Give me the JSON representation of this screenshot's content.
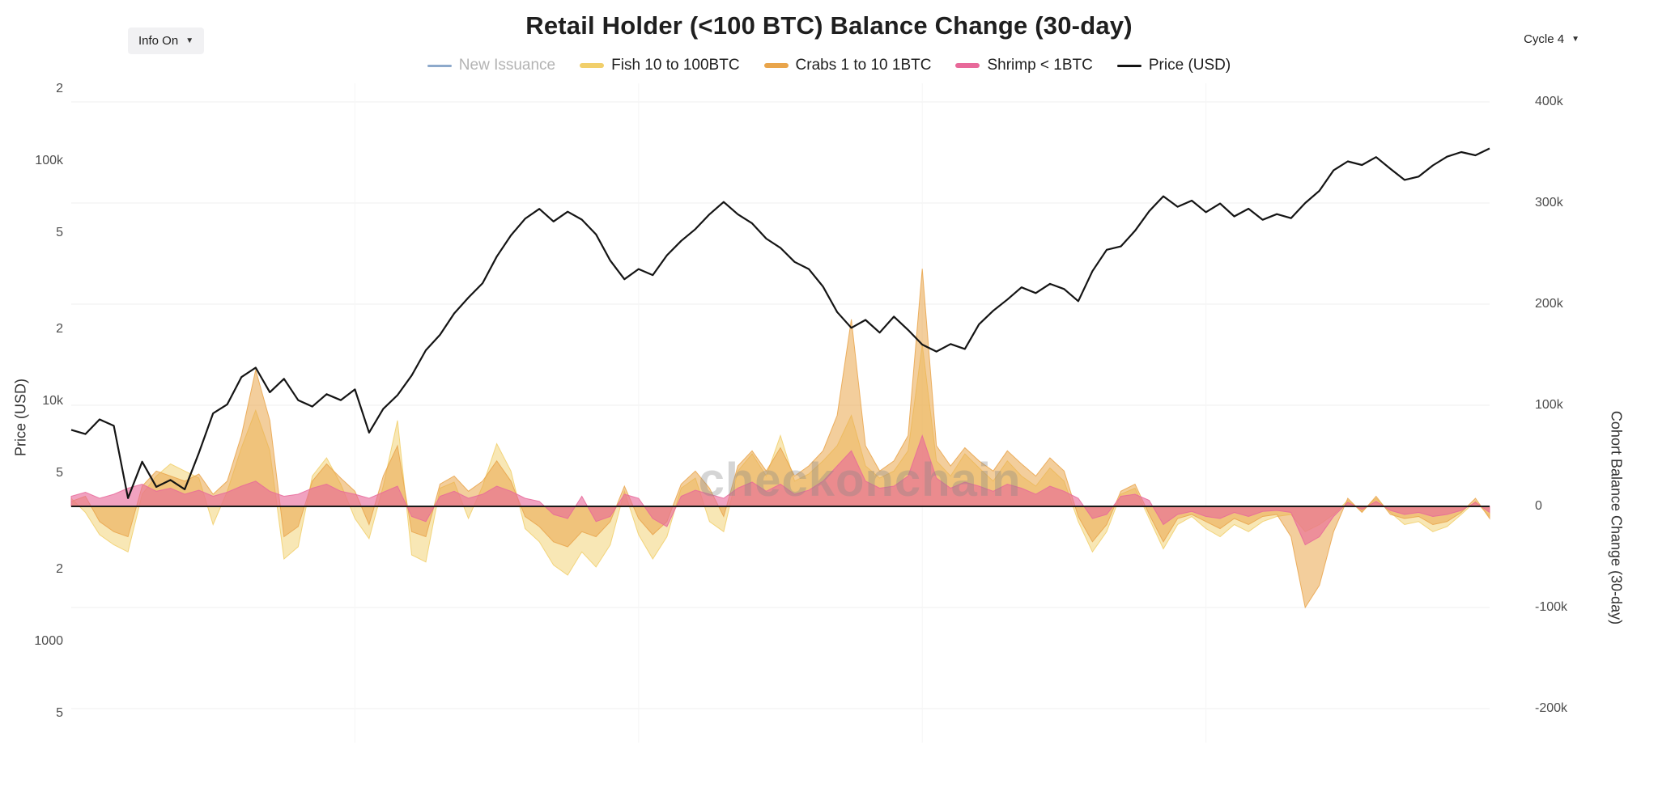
{
  "header": {
    "title": "Retail Holder (<100 BTC) Balance Change (30-day)",
    "info_dropdown": {
      "label": "Info On",
      "arrow": "▼"
    },
    "cycle_dropdown": {
      "label": "Cycle 4",
      "arrow": "▼"
    }
  },
  "legend": {
    "items": [
      {
        "label": "New Issuance",
        "color": "#8da9cb",
        "type": "line",
        "enabled": false
      },
      {
        "label": "Fish 10 to 100BTC",
        "color": "#f1cf6b",
        "type": "area",
        "enabled": true
      },
      {
        "label": "Crabs 1 to 10 1BTC",
        "color": "#e9a54b",
        "type": "area",
        "enabled": true
      },
      {
        "label": "Shrimp < 1BTC",
        "color": "#e8699a",
        "type": "area",
        "enabled": true
      },
      {
        "label": "Price (USD)",
        "color": "#141414",
        "type": "line",
        "enabled": true
      }
    ]
  },
  "axes": {
    "left": {
      "title": "Price (USD)",
      "scale": "log",
      "tick_labels": [
        "2",
        "100k",
        "5",
        "2",
        "10k",
        "5",
        "2",
        "1000",
        "5"
      ],
      "tick_values": [
        200000,
        100000,
        50000,
        20000,
        10000,
        5000,
        2000,
        1000,
        500
      ]
    },
    "right": {
      "title": "Cohort Balance Change (30-day)",
      "scale": "linear",
      "tick_labels": [
        "400k",
        "300k",
        "200k",
        "100k",
        "0",
        "-100k",
        "-200k"
      ],
      "tick_values": [
        400000,
        300000,
        200000,
        100000,
        0,
        -100000,
        -200000
      ]
    }
  },
  "watermark": "checkonchain",
  "chart_data": {
    "type": "mixed",
    "x_points": 101,
    "x_tick_labels": [],
    "left_axis": {
      "label": "Price (USD)",
      "scale": "log",
      "approx_range": [
        500,
        200000
      ]
    },
    "right_axis": {
      "label": "Cohort Balance Change (30-day)",
      "scale": "linear",
      "approx_range": [
        -235000,
        420000
      ],
      "unit": "BTC"
    },
    "series": [
      {
        "name": "New Issuance",
        "type": "line",
        "axis": "right",
        "visible": false,
        "color": "#8da9cb",
        "opacity": 1,
        "values": []
      },
      {
        "name": "Fish 10 to 100BTC",
        "type": "area",
        "axis": "right",
        "visible": true,
        "color": "#f1cf6b",
        "opacity": 0.5,
        "values": [
          8000,
          -6000,
          -28000,
          -38000,
          -45000,
          12000,
          30000,
          42000,
          35000,
          28000,
          -18000,
          15000,
          58000,
          95000,
          55000,
          -52000,
          -40000,
          30000,
          48000,
          22000,
          -12000,
          -32000,
          20000,
          85000,
          -48000,
          -55000,
          18000,
          24000,
          -12000,
          20000,
          62000,
          35000,
          -22000,
          -35000,
          -58000,
          -68000,
          -45000,
          -60000,
          -38000,
          15000,
          -28000,
          -52000,
          -30000,
          18000,
          28000,
          -15000,
          -25000,
          35000,
          52000,
          30000,
          70000,
          25000,
          32000,
          45000,
          60000,
          90000,
          40000,
          28000,
          35000,
          55000,
          160000,
          45000,
          30000,
          52000,
          38000,
          25000,
          45000,
          30000,
          20000,
          38000,
          25000,
          -15000,
          -45000,
          -25000,
          12000,
          18000,
          -12000,
          -42000,
          -18000,
          -10000,
          -22000,
          -30000,
          -18000,
          -25000,
          -15000,
          -10000,
          -8000,
          -25000,
          -18000,
          -8000,
          6000,
          -5000,
          8000,
          -6000,
          -18000,
          -15000,
          -25000,
          -20000,
          -8000,
          5000,
          -10000
        ]
      },
      {
        "name": "Crabs 1 to 10 1BTC",
        "type": "area",
        "axis": "right",
        "visible": true,
        "color": "#e9a54b",
        "opacity": 0.55,
        "values": [
          5000,
          10000,
          -15000,
          -25000,
          -30000,
          20000,
          35000,
          30000,
          25000,
          32000,
          12000,
          25000,
          70000,
          135000,
          85000,
          -30000,
          -20000,
          25000,
          42000,
          28000,
          15000,
          -18000,
          30000,
          60000,
          -25000,
          -30000,
          22000,
          30000,
          15000,
          25000,
          45000,
          25000,
          -10000,
          -20000,
          -35000,
          -40000,
          -25000,
          -30000,
          -15000,
          20000,
          -12000,
          -28000,
          -15000,
          22000,
          35000,
          18000,
          -10000,
          40000,
          55000,
          35000,
          58000,
          30000,
          40000,
          55000,
          90000,
          185000,
          60000,
          35000,
          45000,
          70000,
          235000,
          60000,
          40000,
          58000,
          45000,
          35000,
          55000,
          42000,
          30000,
          48000,
          35000,
          -10000,
          -35000,
          -18000,
          15000,
          22000,
          -8000,
          -35000,
          -12000,
          -8000,
          -15000,
          -22000,
          -12000,
          -18000,
          -10000,
          -8000,
          -30000,
          -100000,
          -78000,
          -25000,
          8000,
          -6000,
          10000,
          -8000,
          -12000,
          -10000,
          -18000,
          -15000,
          -6000,
          8000,
          -12000
        ]
      },
      {
        "name": "Shrimp < 1BTC",
        "type": "area",
        "axis": "right",
        "visible": true,
        "color": "#e8699a",
        "opacity": 0.62,
        "values": [
          10000,
          14000,
          8000,
          12000,
          18000,
          22000,
          15000,
          18000,
          12000,
          16000,
          10000,
          14000,
          20000,
          25000,
          15000,
          10000,
          12000,
          18000,
          22000,
          15000,
          12000,
          8000,
          14000,
          20000,
          -10000,
          -15000,
          10000,
          15000,
          8000,
          12000,
          20000,
          15000,
          8000,
          5000,
          -8000,
          -12000,
          10000,
          -15000,
          -10000,
          12000,
          8000,
          -12000,
          -20000,
          10000,
          16000,
          12000,
          8000,
          18000,
          24000,
          15000,
          22000,
          12000,
          16000,
          25000,
          40000,
          55000,
          25000,
          18000,
          20000,
          30000,
          70000,
          28000,
          18000,
          24000,
          20000,
          15000,
          22000,
          18000,
          12000,
          20000,
          15000,
          8000,
          -12000,
          -8000,
          10000,
          12000,
          6000,
          -18000,
          -8000,
          -5000,
          -10000,
          -12000,
          -6000,
          -10000,
          -5000,
          -4000,
          -6000,
          -38000,
          -30000,
          -10000,
          4000,
          -3000,
          5000,
          -4000,
          -8000,
          -6000,
          -10000,
          -8000,
          -4000,
          4000,
          -6000
        ]
      },
      {
        "name": "Price (USD)",
        "type": "line",
        "axis": "left",
        "visible": true,
        "color": "#141414",
        "opacity": 1,
        "values": [
          7600,
          7300,
          8400,
          7900,
          3950,
          5600,
          4400,
          4700,
          4300,
          6100,
          8900,
          9700,
          12600,
          13800,
          10900,
          12400,
          10100,
          9500,
          10700,
          10100,
          11200,
          7400,
          9300,
          10600,
          12800,
          16300,
          18900,
          23200,
          27000,
          31000,
          40000,
          49000,
          57500,
          63200,
          56000,
          61500,
          57000,
          49500,
          38500,
          32200,
          35500,
          33500,
          40500,
          46500,
          52000,
          60000,
          67500,
          60000,
          55000,
          47500,
          43500,
          38000,
          35500,
          30000,
          23500,
          20200,
          21800,
          19300,
          22500,
          19800,
          17200,
          16100,
          17300,
          16500,
          20900,
          23800,
          26500,
          29800,
          28200,
          30800,
          29300,
          26100,
          34800,
          42700,
          44100,
          51200,
          61800,
          71300,
          64500,
          68400,
          61200,
          66500,
          58800,
          63300,
          56900,
          60100,
          57800,
          66800,
          75200,
          91500,
          99600,
          96200,
          103800,
          92800,
          83400,
          86100,
          95800,
          104200,
          108900,
          105600,
          112800
        ]
      }
    ]
  }
}
